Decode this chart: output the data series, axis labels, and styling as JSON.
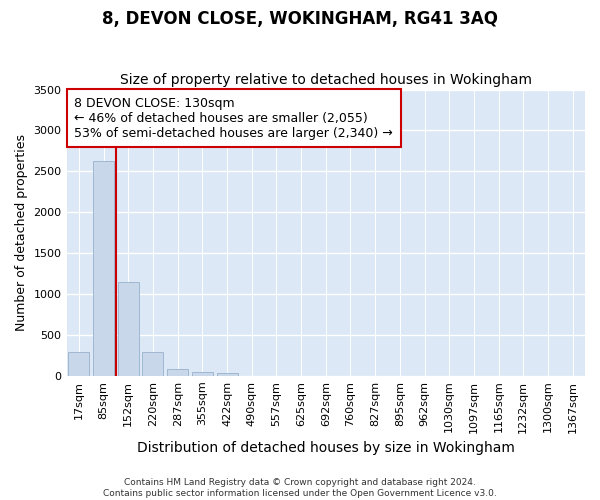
{
  "title": "8, DEVON CLOSE, WOKINGHAM, RG41 3AQ",
  "subtitle": "Size of property relative to detached houses in Wokingham",
  "xlabel": "Distribution of detached houses by size in Wokingham",
  "ylabel": "Number of detached properties",
  "categories": [
    "17sqm",
    "85sqm",
    "152sqm",
    "220sqm",
    "287sqm",
    "355sqm",
    "422sqm",
    "490sqm",
    "557sqm",
    "625sqm",
    "692sqm",
    "760sqm",
    "827sqm",
    "895sqm",
    "962sqm",
    "1030sqm",
    "1097sqm",
    "1165sqm",
    "1232sqm",
    "1300sqm",
    "1367sqm"
  ],
  "values": [
    290,
    2630,
    1150,
    290,
    80,
    50,
    30,
    0,
    0,
    0,
    0,
    0,
    0,
    0,
    0,
    0,
    0,
    0,
    0,
    0,
    0
  ],
  "bar_color": "#c8d8ea",
  "bar_edge_color": "#a0b8d0",
  "vline_x_index": 1,
  "vline_color": "#cc0000",
  "annotation_box_text": "8 DEVON CLOSE: 130sqm\n← 46% of detached houses are smaller (2,055)\n53% of semi-detached houses are larger (2,340) →",
  "annotation_fontsize": 9,
  "ylim": [
    0,
    3500
  ],
  "yticks": [
    0,
    500,
    1000,
    1500,
    2000,
    2500,
    3000,
    3500
  ],
  "title_fontsize": 12,
  "subtitle_fontsize": 10,
  "xlabel_fontsize": 10,
  "ylabel_fontsize": 9,
  "tick_fontsize": 8,
  "footer_line1": "Contains HM Land Registry data © Crown copyright and database right 2024.",
  "footer_line2": "Contains public sector information licensed under the Open Government Licence v3.0.",
  "bg_color": "#ffffff",
  "plot_bg_color": "#dce8f5",
  "grid_color": "#ffffff"
}
